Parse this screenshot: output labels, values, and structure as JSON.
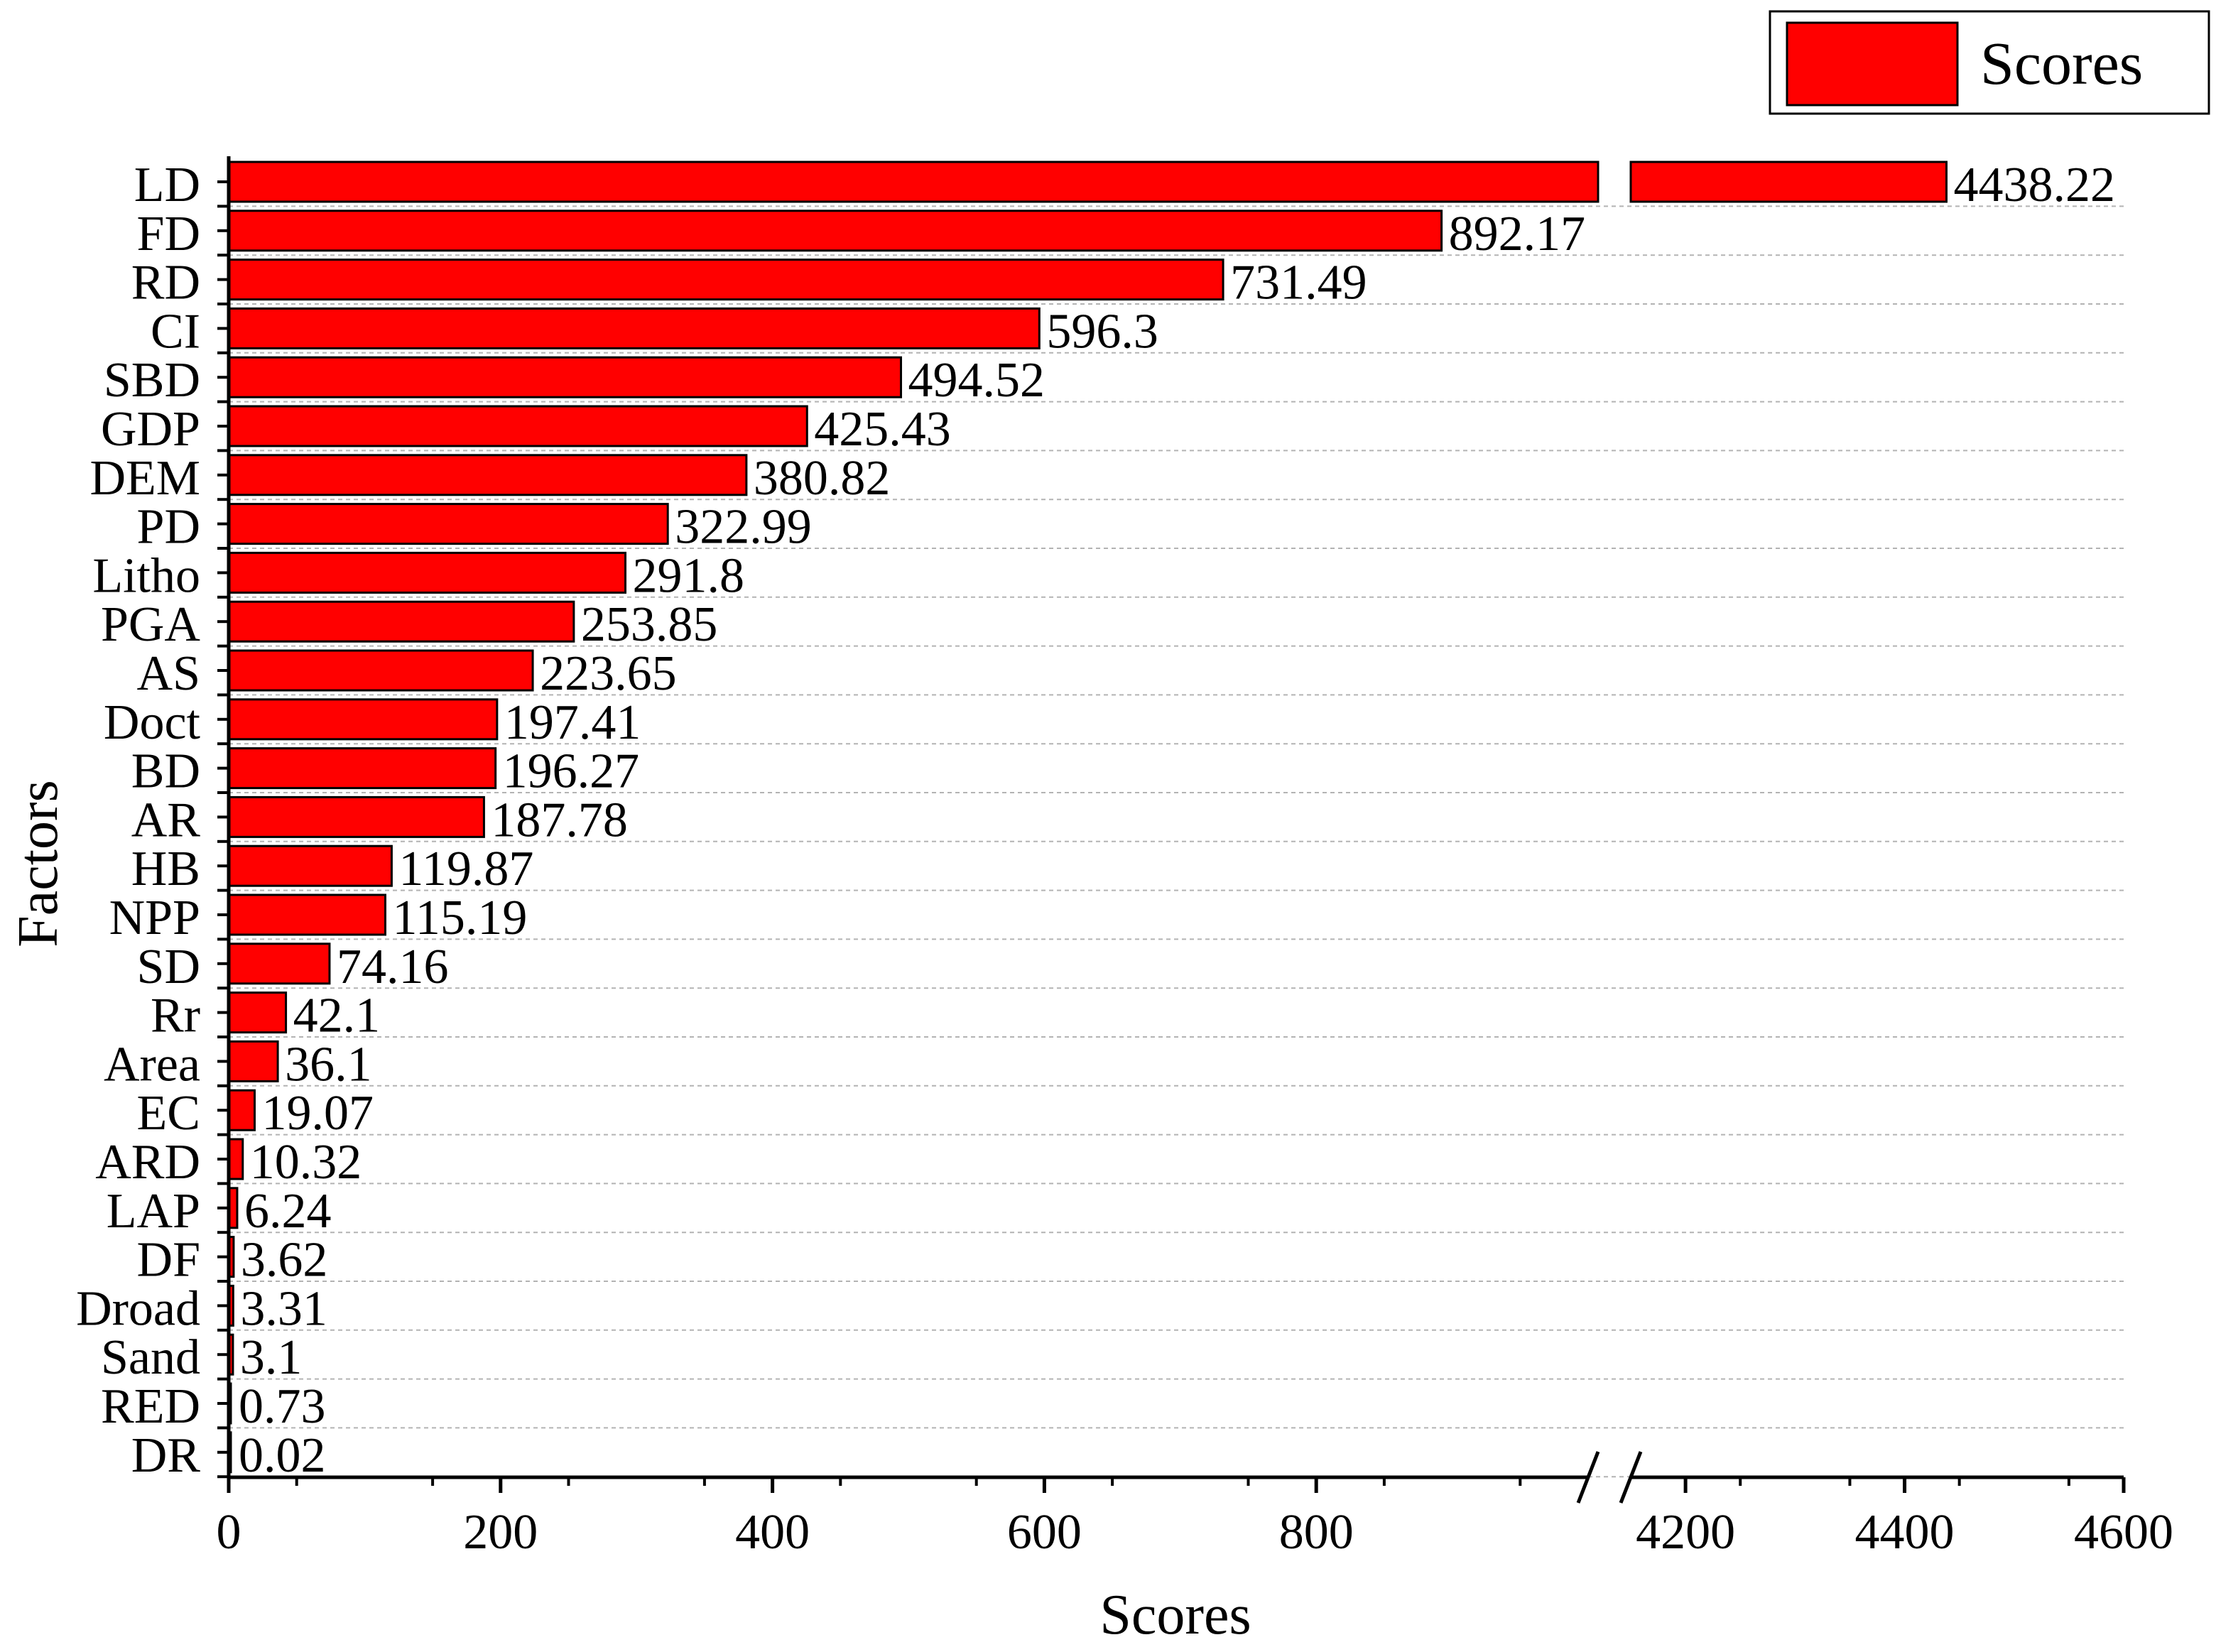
{
  "chart_data": {
    "type": "bar",
    "orientation": "horizontal",
    "categories": [
      "LD",
      "FD",
      "RD",
      "CI",
      "SBD",
      "GDP",
      "DEM",
      "PD",
      "Litho",
      "PGA",
      "AS",
      "Doct",
      "BD",
      "AR",
      "HB",
      "NPP",
      "SD",
      "Rr",
      "Area",
      "EC",
      "ARD",
      "LAP",
      "DF",
      "Droad",
      "Sand",
      "RED",
      "DR"
    ],
    "values": [
      4438.22,
      892.17,
      731.49,
      596.3,
      494.52,
      425.43,
      380.82,
      322.99,
      291.8,
      253.85,
      223.65,
      197.41,
      196.27,
      187.78,
      119.87,
      115.19,
      74.16,
      42.1,
      36.1,
      19.07,
      10.32,
      6.24,
      3.62,
      3.31,
      3.1,
      0.73,
      0.02
    ],
    "value_labels": [
      "4438.22",
      "892.17",
      "731.49",
      "596.3",
      "494.52",
      "425.43",
      "380.82",
      "322.99",
      "291.8",
      "253.85",
      "223.65",
      "197.41",
      "196.27",
      "187.78",
      "119.87",
      "115.19",
      "74.16",
      "42.1",
      "36.1",
      "19.07",
      "10.32",
      "6.24",
      "3.62",
      "3.31",
      "3.1",
      "0.73",
      "0.02"
    ],
    "series": [
      {
        "name": "Scores"
      }
    ],
    "xlabel": "Scores",
    "ylabel": "Factors",
    "xlim": [
      0,
      4600
    ],
    "axis_break": [
      1000,
      4150
    ],
    "x_ticks": [
      0,
      200,
      400,
      600,
      800,
      4200,
      4400,
      4600
    ],
    "x_tick_labels": [
      "0",
      "200",
      "400",
      "600",
      "800",
      "4200",
      "4400",
      "4600"
    ],
    "grid": "horizontal dashed",
    "legend_position": "top-right",
    "bar_color": "#ff0000"
  }
}
